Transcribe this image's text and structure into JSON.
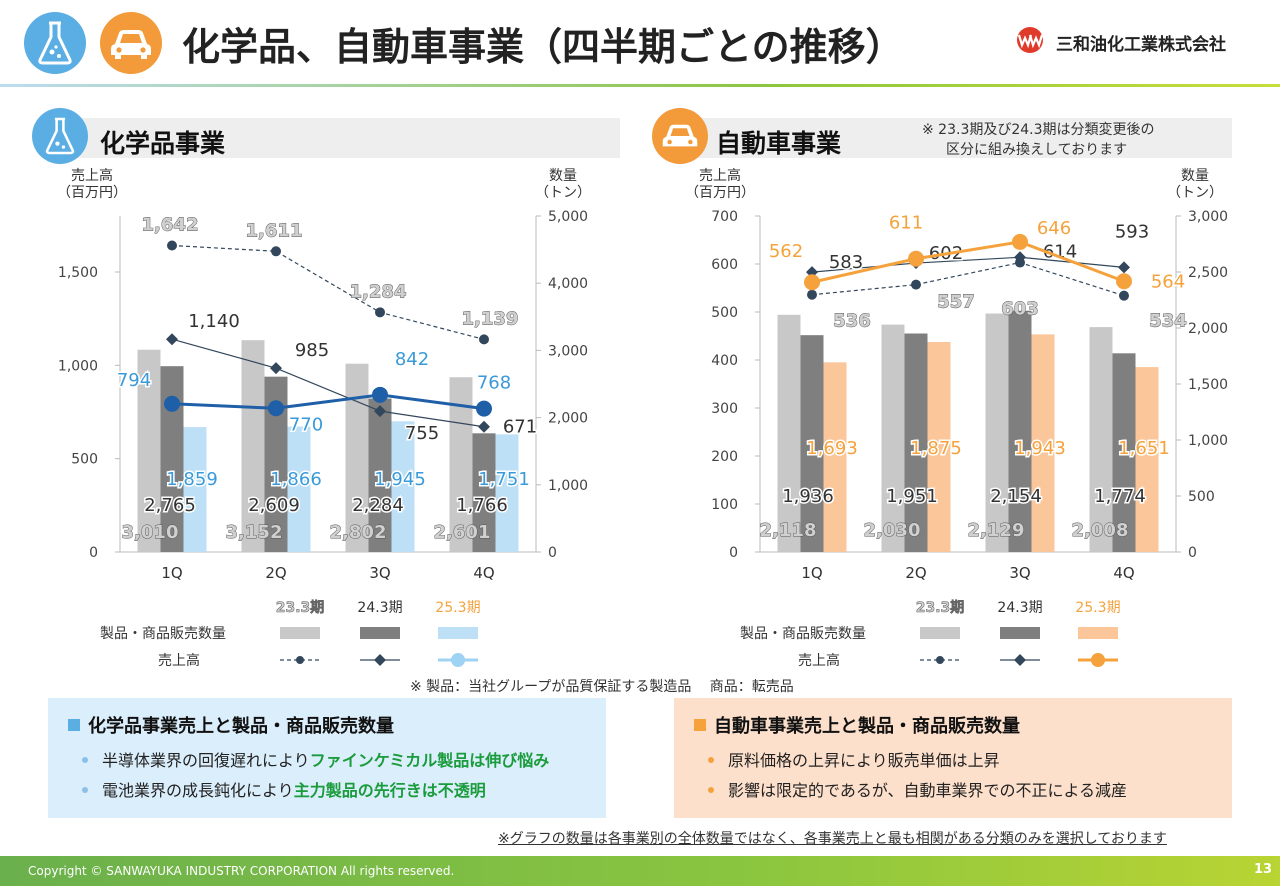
{
  "header": {
    "title": "化学品、自動車事業（四半期ごとの推移）",
    "company": "三和油化工業株式会社",
    "chem_icon": "flask-icon",
    "car_icon": "car-icon"
  },
  "chem": {
    "section_title": "化学品事業",
    "left_unit": [
      "売上高",
      "（百万円）"
    ],
    "right_unit": [
      "数量",
      "（トン）"
    ],
    "legend": {
      "heads": [
        "23.3期",
        "24.3期",
        "25.3期"
      ],
      "row_qty": "製品・商品販売数量",
      "row_sales": "売上高"
    },
    "box": {
      "title": "化学品事業売上と製品・商品販売数量",
      "bullets": [
        {
          "plain": "半導体業界の回復遅れにより",
          "highlight": "ファインケミカル製品は伸び悩み"
        },
        {
          "plain": "電池業界の成長鈍化により",
          "highlight": "主力製品の先行きは不透明"
        }
      ]
    }
  },
  "auto": {
    "section_title": "自動車事業",
    "note": [
      "※ 23.3期及び24.3期は分類変更後の",
      "区分に組み換えしております"
    ],
    "left_unit": [
      "売上高",
      "（百万円）"
    ],
    "right_unit": [
      "数量",
      "（トン）"
    ],
    "legend": {
      "heads": [
        "23.3期",
        "24.3期",
        "25.3期"
      ],
      "row_qty": "製品・商品販売数量",
      "row_sales": "売上高"
    },
    "box": {
      "title": "自動車事業売上と製品・商品販売数量",
      "bullets": [
        {
          "plain": "原料価格の上昇により販売単価は上昇",
          "highlight": ""
        },
        {
          "plain": "影響は限定的であるが、自動車業界での不正による減産",
          "highlight": ""
        }
      ]
    }
  },
  "product_note": "※ 製品：当社グループが品質保証する製造品　 商品：転売品",
  "bottom_note": "※グラフの数量は各事業別の全体数量ではなく、各事業売上と最も相関がある分類のみを選択しております",
  "footer": {
    "copyright": "Copyright © SANWAYUKA INDUSTRY CORPORATION All rights reserved.",
    "page": "13"
  },
  "colors": {
    "bar_233": "#c8c8c8",
    "bar_243": "#7f7f7f",
    "chem_253": "#bde0f7",
    "chem_253_line": "#1f5fa8",
    "chem_253_text": "#3a9ad9",
    "auto_253": "#fbc79a",
    "auto_253_line": "#f5a23c",
    "line_233": "#33475c",
    "line_243": "#33475c",
    "chem_box_bg": "#dbeefb",
    "auto_box_bg": "#fde0cc"
  },
  "chart_data": [
    {
      "type": "bar",
      "name": "chem",
      "categories": [
        "1Q",
        "2Q",
        "3Q",
        "4Q"
      ],
      "left_axis": {
        "min": 0,
        "max": 1800,
        "ticks": [
          0,
          500,
          1000,
          1500
        ],
        "tick_labels": [
          "0",
          "500",
          "1,000",
          "1,500"
        ]
      },
      "right_axis": {
        "min": 0,
        "max": 5000,
        "ticks": [
          0,
          1000,
          2000,
          3000,
          4000,
          5000
        ],
        "tick_labels": [
          "0",
          "1,000",
          "2,000",
          "3,000",
          "4,000",
          "5,000"
        ]
      },
      "bar_series": [
        {
          "name": "23.3期",
          "axis": "right",
          "values": [
            3010,
            3152,
            2802,
            2601
          ],
          "labels": [
            "3,010",
            "3,152",
            "2,802",
            "2,601"
          ]
        },
        {
          "name": "24.3期",
          "axis": "right",
          "values": [
            2765,
            2609,
            2284,
            1766
          ],
          "labels": [
            "2,765",
            "2,609",
            "2,284",
            "1,766"
          ]
        },
        {
          "name": "25.3期",
          "axis": "right",
          "values": [
            1859,
            1866,
            1945,
            1751
          ],
          "labels": [
            "1,859",
            "1,866",
            "1,945",
            "1,751"
          ]
        }
      ],
      "line_series": [
        {
          "name": "23.3期",
          "axis": "left",
          "values": [
            1642,
            1611,
            1284,
            1139
          ],
          "labels": [
            "1,642",
            "1,611",
            "1,284",
            "1,139"
          ]
        },
        {
          "name": "24.3期",
          "axis": "left",
          "values": [
            1140,
            985,
            755,
            671
          ],
          "labels": [
            "1,140",
            "985",
            "755",
            "671"
          ]
        },
        {
          "name": "25.3期",
          "axis": "left",
          "values": [
            794,
            770,
            842,
            768
          ],
          "labels": [
            "794",
            "770",
            "842",
            "768"
          ]
        }
      ]
    },
    {
      "type": "bar",
      "name": "auto",
      "categories": [
        "1Q",
        "2Q",
        "3Q",
        "4Q"
      ],
      "left_axis": {
        "min": 0,
        "max": 700,
        "ticks": [
          0,
          100,
          200,
          300,
          400,
          500,
          600,
          700
        ],
        "tick_labels": [
          "0",
          "100",
          "200",
          "300",
          "400",
          "500",
          "600",
          "700"
        ]
      },
      "right_axis": {
        "min": 0,
        "max": 3000,
        "ticks": [
          0,
          500,
          1000,
          1500,
          2000,
          2500,
          3000
        ],
        "tick_labels": [
          "0",
          "500",
          "1,000",
          "1,500",
          "2,000",
          "2,500",
          "3,000"
        ]
      },
      "bar_series": [
        {
          "name": "23.3期",
          "axis": "right",
          "values": [
            2118,
            2030,
            2129,
            2008
          ],
          "labels": [
            "2,118",
            "2,030",
            "2,129",
            "2,008"
          ]
        },
        {
          "name": "24.3期",
          "axis": "right",
          "values": [
            1936,
            1951,
            2154,
            1774
          ],
          "labels": [
            "1,936",
            "1,951",
            "2,154",
            "1,774"
          ]
        },
        {
          "name": "25.3期",
          "axis": "right",
          "values": [
            1693,
            1875,
            1943,
            1651
          ],
          "labels": [
            "1,693",
            "1,875",
            "1,943",
            "1,651"
          ]
        }
      ],
      "line_series": [
        {
          "name": "23.3期",
          "axis": "left",
          "values": [
            536,
            557,
            603,
            534
          ],
          "labels": [
            "536",
            "557",
            "603",
            "534"
          ]
        },
        {
          "name": "24.3期",
          "axis": "left",
          "values": [
            583,
            602,
            614,
            593
          ],
          "labels": [
            "583",
            "602",
            "614",
            "593"
          ]
        },
        {
          "name": "25.3期",
          "axis": "left",
          "values": [
            562,
            611,
            646,
            564
          ],
          "labels": [
            "562",
            "611",
            "646",
            "564"
          ]
        }
      ]
    }
  ]
}
